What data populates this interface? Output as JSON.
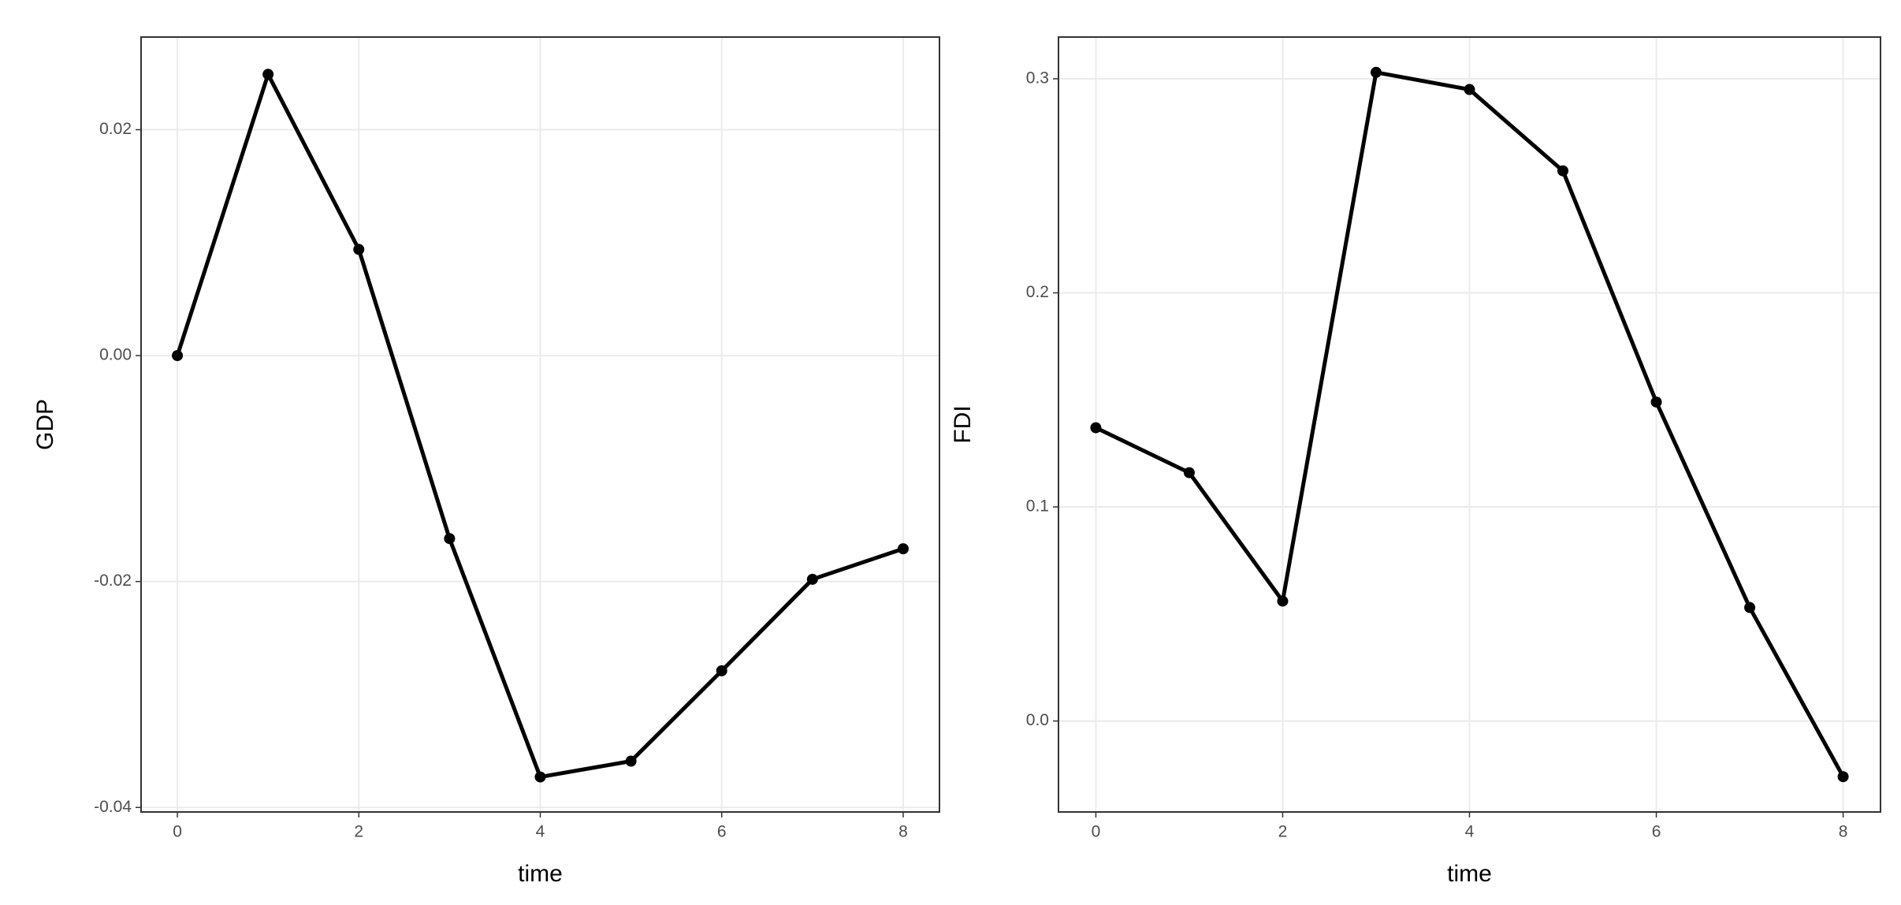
{
  "chart_data": [
    {
      "type": "line",
      "x_label": "time",
      "y_label": "GDP",
      "x": [
        0,
        1,
        2,
        3,
        4,
        5,
        6,
        7,
        8
      ],
      "series": [
        {
          "color": "#000000",
          "values": [
            0.0,
            0.0249,
            0.0094,
            -0.0162,
            -0.0373,
            -0.0359,
            -0.0279,
            -0.0198,
            -0.0171
          ]
        }
      ],
      "xlim": [
        -0.4,
        8.4
      ],
      "xticks": [
        0,
        2,
        4,
        6,
        8
      ],
      "ylim": [
        -0.0404,
        0.0282
      ],
      "yticks": [
        {
          "value": -0.04,
          "label": "-0.04"
        },
        {
          "value": -0.02,
          "label": "-0.02"
        },
        {
          "value": 0,
          "label": "0.00"
        },
        {
          "value": 0.02,
          "label": "0.02"
        }
      ],
      "grid": true
    },
    {
      "type": "line",
      "x_label": "time",
      "y_label": "FDI",
      "x": [
        0,
        1,
        2,
        3,
        4,
        5,
        6,
        7,
        8
      ],
      "series": [
        {
          "color": "#000000",
          "values": [
            0.137,
            0.116,
            0.056,
            0.303,
            0.295,
            0.257,
            0.149,
            0.053,
            -0.026
          ]
        }
      ],
      "xlim": [
        -0.4,
        8.4
      ],
      "xticks": [
        0,
        2,
        4,
        6,
        8
      ],
      "ylim": [
        -0.0425,
        0.3195
      ],
      "yticks": [
        {
          "value": 0,
          "label": "0.0"
        },
        0.1,
        0.2,
        0.3
      ],
      "grid": true
    }
  ]
}
